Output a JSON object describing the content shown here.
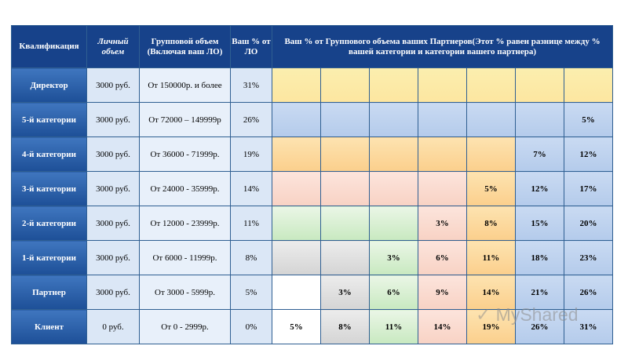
{
  "headers": {
    "qualification": "Квалификация",
    "personal_volume": "Личный объем",
    "group_volume": "Групповой объем (Включая ваш ЛО)",
    "your_percent": "Ваш % от ЛО",
    "partners_percent": "Ваш % от Группового объема ваших Партнеров(Этот % равен разнице между % вашей категории и категории вашего партнера)"
  },
  "rows": [
    {
      "name": "Директор",
      "personal": "3000 руб.",
      "group": "От 150000р. и более",
      "pct": "31%",
      "cells": [
        {
          "t": "",
          "c": "yellow"
        },
        {
          "t": "",
          "c": "yellow"
        },
        {
          "t": "",
          "c": "yellow"
        },
        {
          "t": "",
          "c": "yellow"
        },
        {
          "t": "",
          "c": "yellow"
        },
        {
          "t": "",
          "c": "yellow"
        },
        {
          "t": "",
          "c": "yellow"
        }
      ]
    },
    {
      "name": "5-й категории",
      "personal": "3000 руб.",
      "group": "От 72000 – 149999р",
      "pct": "26%",
      "cells": [
        {
          "t": "",
          "c": "blue"
        },
        {
          "t": "",
          "c": "blue"
        },
        {
          "t": "",
          "c": "blue"
        },
        {
          "t": "",
          "c": "blue"
        },
        {
          "t": "",
          "c": "blue"
        },
        {
          "t": "",
          "c": "blue"
        },
        {
          "t": "5%",
          "c": "blue"
        }
      ]
    },
    {
      "name": "4-й категории",
      "personal": "3000 руб.",
      "group": "От 36000 - 71999р.",
      "pct": "19%",
      "cells": [
        {
          "t": "",
          "c": "orange"
        },
        {
          "t": "",
          "c": "orange"
        },
        {
          "t": "",
          "c": "orange"
        },
        {
          "t": "",
          "c": "orange"
        },
        {
          "t": "",
          "c": "orange"
        },
        {
          "t": "7%",
          "c": "blue"
        },
        {
          "t": "12%",
          "c": "blue"
        }
      ]
    },
    {
      "name": "3-й категории",
      "personal": "3000 руб.",
      "group": "От 24000 - 35999р.",
      "pct": "14%",
      "cells": [
        {
          "t": "",
          "c": "pink"
        },
        {
          "t": "",
          "c": "pink"
        },
        {
          "t": "",
          "c": "pink"
        },
        {
          "t": "",
          "c": "pink"
        },
        {
          "t": "5%",
          "c": "orange"
        },
        {
          "t": "12%",
          "c": "blue"
        },
        {
          "t": "17%",
          "c": "blue"
        }
      ]
    },
    {
      "name": "2-й категории",
      "personal": "3000 руб.",
      "group": "От 12000 - 23999р.",
      "pct": "11%",
      "cells": [
        {
          "t": "",
          "c": "green"
        },
        {
          "t": "",
          "c": "green"
        },
        {
          "t": "",
          "c": "green"
        },
        {
          "t": "3%",
          "c": "pink"
        },
        {
          "t": "8%",
          "c": "orange"
        },
        {
          "t": "15%",
          "c": "blue"
        },
        {
          "t": "20%",
          "c": "blue"
        }
      ]
    },
    {
      "name": "1-й категории",
      "personal": "3000 руб.",
      "group": "От 6000 - 11999р.",
      "pct": "8%",
      "cells": [
        {
          "t": "",
          "c": "gray"
        },
        {
          "t": "",
          "c": "gray"
        },
        {
          "t": "3%",
          "c": "green"
        },
        {
          "t": "6%",
          "c": "pink"
        },
        {
          "t": "11%",
          "c": "orange"
        },
        {
          "t": "18%",
          "c": "blue"
        },
        {
          "t": "23%",
          "c": "blue"
        }
      ]
    },
    {
      "name": "Партнер",
      "personal": "3000 руб.",
      "group": "От 3000 - 5999р.",
      "pct": "5%",
      "cells": [
        {
          "t": "",
          "c": "white"
        },
        {
          "t": "3%",
          "c": "gray"
        },
        {
          "t": "6%",
          "c": "green"
        },
        {
          "t": "9%",
          "c": "pink"
        },
        {
          "t": "14%",
          "c": "orange"
        },
        {
          "t": "21%",
          "c": "blue"
        },
        {
          "t": "26%",
          "c": "blue"
        }
      ]
    },
    {
      "name": "Клиент",
      "personal": "0 руб.",
      "group": "От 0 - 2999р.",
      "pct": "0%",
      "cells": [
        {
          "t": "5%",
          "c": "white"
        },
        {
          "t": "8%",
          "c": "gray"
        },
        {
          "t": "11%",
          "c": "green"
        },
        {
          "t": "14%",
          "c": "pink"
        },
        {
          "t": "19%",
          "c": "orange"
        },
        {
          "t": "26%",
          "c": "blue"
        },
        {
          "t": "31%",
          "c": "blue"
        }
      ]
    }
  ],
  "watermark": "MyShared"
}
